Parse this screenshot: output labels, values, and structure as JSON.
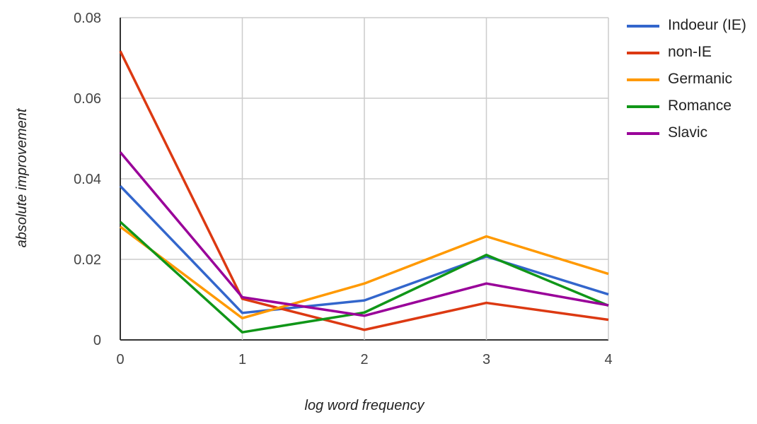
{
  "chart_data": {
    "type": "line",
    "xlabel": "log word frequency",
    "ylabel": "absolute improvement",
    "x": [
      0,
      1,
      2,
      3,
      4
    ],
    "xlim": [
      0,
      4
    ],
    "ylim": [
      0,
      0.08
    ],
    "xticks": [
      "0",
      "1",
      "2",
      "3",
      "4"
    ],
    "yticks": [
      {
        "value": 0,
        "label": "0"
      },
      {
        "value": 0.02,
        "label": "0.02"
      },
      {
        "value": 0.04,
        "label": "0.04"
      },
      {
        "value": 0.06,
        "label": "0.06"
      },
      {
        "value": 0.08,
        "label": "0.08"
      }
    ],
    "grid": true,
    "legend_position": "right",
    "series": [
      {
        "name": "Indoeur (IE)",
        "color": "#3366cc",
        "values": [
          0.0382,
          0.0067,
          0.0098,
          0.0207,
          0.0113
        ]
      },
      {
        "name": "non-IE",
        "color": "#dc3912",
        "values": [
          0.0717,
          0.0102,
          0.0025,
          0.0092,
          0.005
        ]
      },
      {
        "name": "Germanic",
        "color": "#ff9900",
        "values": [
          0.0281,
          0.0054,
          0.014,
          0.0257,
          0.0164
        ]
      },
      {
        "name": "Romance",
        "color": "#109618",
        "values": [
          0.0293,
          0.0019,
          0.0068,
          0.0211,
          0.0085
        ]
      },
      {
        "name": "Slavic",
        "color": "#990099",
        "values": [
          0.0466,
          0.0106,
          0.006,
          0.014,
          0.0086
        ]
      }
    ]
  }
}
